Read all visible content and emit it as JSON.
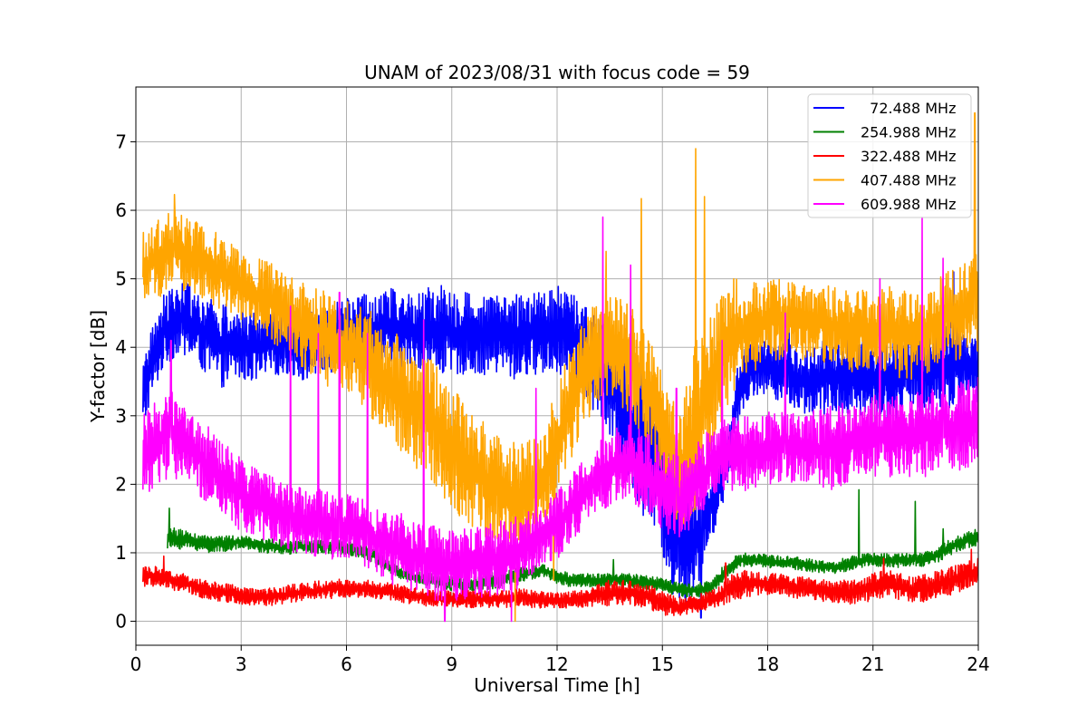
{
  "chart_data": {
    "type": "line",
    "title": "UNAM of 2023/08/31 with focus code = 59",
    "xlabel": "Universal Time [h]",
    "ylabel": "Y-factor [dB]",
    "xlim": [
      0,
      24
    ],
    "ylim": [
      -0.35,
      7.8
    ],
    "xticks": [
      0,
      3,
      6,
      9,
      12,
      15,
      18,
      21,
      24
    ],
    "yticks": [
      0,
      1,
      2,
      3,
      4,
      5,
      6,
      7
    ],
    "grid": true,
    "legend_position": "top-right",
    "series": [
      {
        "name": "72.488 MHz",
        "legend_label": "  72.488 MHz",
        "color": "#0000ff",
        "band_x": [
          0.2,
          0.4,
          0.8,
          1.2,
          1.6,
          2.0,
          2.4,
          2.8,
          3.2,
          3.6,
          4.0,
          4.4,
          4.8,
          5.2,
          5.6,
          6.0,
          6.4,
          6.8,
          7.2,
          7.6,
          8.0,
          8.4,
          8.8,
          9.2,
          9.6,
          10.0,
          10.4,
          10.8,
          11.2,
          11.6,
          12.0,
          12.4,
          12.8,
          13.2,
          13.6,
          14.0,
          14.4,
          14.8,
          15.2,
          15.6,
          16.0,
          16.4,
          16.8,
          17.2,
          17.6,
          18.0,
          18.4,
          18.8,
          19.2,
          19.6,
          20.0,
          20.4,
          20.8,
          21.2,
          21.6,
          22.0,
          22.4,
          22.8,
          23.2,
          23.6,
          24.0
        ],
        "band_lo": [
          2.7,
          3.2,
          3.7,
          3.9,
          3.8,
          3.6,
          3.4,
          3.5,
          3.5,
          3.5,
          3.6,
          3.6,
          3.5,
          3.6,
          3.6,
          3.7,
          3.6,
          3.7,
          3.7,
          3.7,
          3.7,
          3.6,
          3.6,
          3.6,
          3.6,
          3.6,
          3.6,
          3.5,
          3.6,
          3.6,
          3.6,
          3.5,
          3.2,
          3.0,
          2.5,
          2.0,
          1.6,
          1.2,
          0.6,
          0.2,
          0.5,
          1.2,
          1.8,
          3.0,
          3.3,
          3.3,
          3.2,
          3.1,
          3.0,
          3.0,
          3.0,
          3.0,
          3.0,
          3.0,
          2.8,
          3.0,
          3.0,
          3.1,
          3.1,
          3.2,
          3.2
        ],
        "band_hi": [
          3.8,
          4.2,
          4.8,
          5.0,
          4.9,
          4.8,
          4.7,
          4.6,
          4.5,
          4.5,
          4.6,
          4.5,
          4.5,
          4.6,
          4.7,
          4.8,
          4.8,
          4.9,
          4.9,
          4.8,
          4.8,
          4.9,
          4.9,
          4.8,
          4.8,
          4.8,
          4.8,
          4.8,
          4.8,
          4.9,
          4.9,
          4.8,
          4.6,
          4.4,
          4.2,
          4.0,
          3.8,
          3.3,
          2.8,
          2.1,
          1.9,
          2.3,
          2.6,
          3.9,
          4.1,
          4.2,
          4.1,
          4.0,
          4.0,
          4.1,
          4.2,
          4.2,
          4.1,
          4.2,
          4.2,
          4.3,
          4.3,
          4.4,
          4.4,
          4.3,
          4.2
        ],
        "spikes": [
          [
            16.1,
            0.05
          ],
          [
            15.3,
            0.4
          ],
          [
            18.6,
            4.4
          ],
          [
            23.3,
            5.1
          ]
        ]
      },
      {
        "name": "254.988 MHz",
        "legend_label": "254.988 MHz",
        "color": "#008000",
        "band_x": [
          0.9,
          1.2,
          1.6,
          2.0,
          2.4,
          2.8,
          3.2,
          3.6,
          4.0,
          4.4,
          4.8,
          5.2,
          5.6,
          6.0,
          6.4,
          6.8,
          7.2,
          7.6,
          8.0,
          8.4,
          8.8,
          9.2,
          9.6,
          10.0,
          10.4,
          10.8,
          11.2,
          11.6,
          12.0,
          12.4,
          12.8,
          13.2,
          13.6,
          14.0,
          14.4,
          14.8,
          15.2,
          15.6,
          16.0,
          16.4,
          16.8,
          17.2,
          17.6,
          18.0,
          18.4,
          18.8,
          19.2,
          19.6,
          20.0,
          20.4,
          20.8,
          21.2,
          21.6,
          22.0,
          22.4,
          22.8,
          23.2,
          23.6,
          24.0
        ],
        "band_lo": [
          1.05,
          1.05,
          1.05,
          1.0,
          1.0,
          1.05,
          1.05,
          1.0,
          0.98,
          0.98,
          1.0,
          0.98,
          0.98,
          0.98,
          0.92,
          0.85,
          0.7,
          0.6,
          0.55,
          0.5,
          0.45,
          0.45,
          0.45,
          0.45,
          0.5,
          0.55,
          0.6,
          0.65,
          0.55,
          0.5,
          0.5,
          0.5,
          0.5,
          0.5,
          0.45,
          0.45,
          0.4,
          0.35,
          0.35,
          0.4,
          0.6,
          0.8,
          0.8,
          0.78,
          0.78,
          0.75,
          0.72,
          0.7,
          0.7,
          0.75,
          0.8,
          0.8,
          0.78,
          0.8,
          0.8,
          0.85,
          0.95,
          1.05,
          1.1
        ],
        "band_hi": [
          1.4,
          1.35,
          1.3,
          1.25,
          1.25,
          1.25,
          1.25,
          1.2,
          1.2,
          1.18,
          1.2,
          1.2,
          1.2,
          1.2,
          1.15,
          1.05,
          0.9,
          0.8,
          0.75,
          0.7,
          0.68,
          0.65,
          0.65,
          0.7,
          0.75,
          0.8,
          0.8,
          0.85,
          0.75,
          0.7,
          0.7,
          0.7,
          0.7,
          0.7,
          0.68,
          0.65,
          0.6,
          0.55,
          0.55,
          0.6,
          0.85,
          1.0,
          1.0,
          0.98,
          0.95,
          0.95,
          0.92,
          0.88,
          0.9,
          0.95,
          1.0,
          1.0,
          0.98,
          1.0,
          1.0,
          1.05,
          1.2,
          1.3,
          1.35
        ],
        "spikes": [
          [
            0.95,
            1.65
          ],
          [
            6.1,
            1.45
          ],
          [
            13.6,
            0.9
          ],
          [
            20.6,
            1.92
          ],
          [
            22.2,
            1.75
          ],
          [
            23.0,
            1.35
          ]
        ]
      },
      {
        "name": "322.488 MHz",
        "legend_label": "322.488 MHz",
        "color": "#ff0000",
        "band_x": [
          0.2,
          0.6,
          1.0,
          1.4,
          1.8,
          2.2,
          2.6,
          3.0,
          3.4,
          3.8,
          4.2,
          4.6,
          5.0,
          5.4,
          5.8,
          6.2,
          6.6,
          7.0,
          7.4,
          7.8,
          8.2,
          8.6,
          9.0,
          9.4,
          9.8,
          10.2,
          10.6,
          11.0,
          11.4,
          11.8,
          12.2,
          12.6,
          13.0,
          13.4,
          13.8,
          14.2,
          14.6,
          15.0,
          15.4,
          15.8,
          16.2,
          16.6,
          17.0,
          17.4,
          17.8,
          18.2,
          18.6,
          19.0,
          19.4,
          19.8,
          20.2,
          20.6,
          21.0,
          21.4,
          21.8,
          22.2,
          22.6,
          23.0,
          23.4,
          23.8,
          24.0
        ],
        "band_lo": [
          0.5,
          0.5,
          0.45,
          0.42,
          0.35,
          0.3,
          0.28,
          0.25,
          0.22,
          0.22,
          0.25,
          0.28,
          0.3,
          0.32,
          0.35,
          0.35,
          0.35,
          0.32,
          0.3,
          0.25,
          0.22,
          0.2,
          0.2,
          0.2,
          0.2,
          0.2,
          0.2,
          0.22,
          0.18,
          0.18,
          0.18,
          0.2,
          0.22,
          0.22,
          0.22,
          0.22,
          0.18,
          0.1,
          0.05,
          0.12,
          0.15,
          0.2,
          0.3,
          0.35,
          0.38,
          0.38,
          0.35,
          0.32,
          0.3,
          0.28,
          0.25,
          0.25,
          0.3,
          0.35,
          0.3,
          0.25,
          0.3,
          0.35,
          0.4,
          0.5,
          0.55
        ],
        "band_hi": [
          0.85,
          0.8,
          0.75,
          0.7,
          0.62,
          0.58,
          0.55,
          0.52,
          0.5,
          0.5,
          0.52,
          0.55,
          0.58,
          0.6,
          0.62,
          0.6,
          0.6,
          0.58,
          0.55,
          0.5,
          0.48,
          0.45,
          0.45,
          0.45,
          0.45,
          0.45,
          0.45,
          0.48,
          0.45,
          0.42,
          0.42,
          0.45,
          0.5,
          0.6,
          0.6,
          0.58,
          0.55,
          0.45,
          0.35,
          0.38,
          0.42,
          0.5,
          0.7,
          0.75,
          0.72,
          0.7,
          0.68,
          0.65,
          0.62,
          0.6,
          0.6,
          0.62,
          0.7,
          0.75,
          0.7,
          0.65,
          0.7,
          0.78,
          0.85,
          0.9,
          0.95
        ],
        "spikes": [
          [
            0.8,
            0.95
          ],
          [
            16.8,
            0.85
          ],
          [
            21.3,
            0.92
          ],
          [
            23.8,
            1.05
          ]
        ]
      },
      {
        "name": "407.488 MHz",
        "legend_label": "407.488 MHz",
        "color": "#ffa500",
        "band_x": [
          0.2,
          0.5,
          1.0,
          1.5,
          2.0,
          2.5,
          3.0,
          3.5,
          4.0,
          4.5,
          5.0,
          5.5,
          6.0,
          6.5,
          7.0,
          7.5,
          8.0,
          8.5,
          9.0,
          9.5,
          10.0,
          10.5,
          11.0,
          11.5,
          12.0,
          12.5,
          13.0,
          13.5,
          14.0,
          14.5,
          15.0,
          15.5,
          16.0,
          16.5,
          17.0,
          17.5,
          18.0,
          18.5,
          19.0,
          19.5,
          20.0,
          20.5,
          21.0,
          21.5,
          22.0,
          22.5,
          23.0,
          23.5,
          24.0
        ],
        "band_lo": [
          4.6,
          4.7,
          4.8,
          4.8,
          4.7,
          4.5,
          4.4,
          4.2,
          4.0,
          3.8,
          3.6,
          3.4,
          3.3,
          3.1,
          2.8,
          2.5,
          2.2,
          2.0,
          1.6,
          1.4,
          1.2,
          1.1,
          1.0,
          1.2,
          1.8,
          2.5,
          3.0,
          3.2,
          3.0,
          2.6,
          2.0,
          1.3,
          1.5,
          2.6,
          3.3,
          3.6,
          3.8,
          3.8,
          3.8,
          3.8,
          3.7,
          3.6,
          3.7,
          3.6,
          3.5,
          3.6,
          3.8,
          3.8,
          3.9
        ],
        "band_hi": [
          5.7,
          5.8,
          6.0,
          5.9,
          5.8,
          5.6,
          5.4,
          5.3,
          5.2,
          5.0,
          4.9,
          4.8,
          4.7,
          4.6,
          4.4,
          4.2,
          4.0,
          3.8,
          3.5,
          3.2,
          2.9,
          2.7,
          2.6,
          2.8,
          3.4,
          4.2,
          4.6,
          4.8,
          4.7,
          4.3,
          3.6,
          3.0,
          4.2,
          4.6,
          5.0,
          5.0,
          5.0,
          5.0,
          4.9,
          4.9,
          4.9,
          4.8,
          4.9,
          4.9,
          4.8,
          4.9,
          5.1,
          5.2,
          5.4
        ],
        "spikes": [
          [
            1.1,
            6.23
          ],
          [
            13.4,
            5.4
          ],
          [
            14.4,
            6.17
          ],
          [
            15.95,
            6.9
          ],
          [
            16.2,
            6.2
          ],
          [
            23.9,
            7.42
          ],
          [
            10.8,
            0.0
          ],
          [
            11.9,
            0.6
          ]
        ]
      },
      {
        "name": "609.988 MHz",
        "legend_label": "609.988 MHz",
        "color": "#ff00ff",
        "band_x": [
          0.2,
          0.5,
          1.0,
          1.5,
          2.0,
          2.5,
          3.0,
          3.5,
          4.0,
          4.5,
          5.0,
          5.5,
          6.0,
          6.5,
          7.0,
          7.5,
          8.0,
          8.5,
          9.0,
          9.5,
          10.0,
          10.5,
          11.0,
          11.5,
          12.0,
          12.5,
          13.0,
          13.5,
          14.0,
          14.5,
          15.0,
          15.5,
          16.0,
          16.5,
          17.0,
          17.5,
          18.0,
          18.5,
          19.0,
          19.5,
          20.0,
          20.5,
          21.0,
          21.5,
          22.0,
          22.5,
          23.0,
          23.5,
          24.0
        ],
        "band_lo": [
          1.8,
          1.9,
          2.1,
          2.0,
          1.7,
          1.5,
          1.3,
          1.2,
          1.1,
          1.0,
          0.95,
          0.9,
          0.9,
          0.8,
          0.6,
          0.5,
          0.4,
          0.3,
          0.3,
          0.3,
          0.35,
          0.4,
          0.5,
          0.7,
          0.9,
          1.2,
          1.5,
          1.7,
          1.8,
          1.6,
          1.3,
          1.1,
          1.5,
          1.8,
          1.9,
          1.9,
          2.0,
          2.0,
          2.0,
          1.9,
          1.9,
          2.0,
          2.1,
          2.1,
          2.1,
          2.1,
          2.2,
          2.2,
          2.3
        ],
        "band_hi": [
          3.0,
          3.2,
          3.5,
          3.2,
          2.9,
          2.6,
          2.4,
          2.2,
          2.1,
          2.0,
          1.95,
          1.9,
          1.85,
          1.8,
          1.7,
          1.6,
          1.5,
          1.4,
          1.35,
          1.35,
          1.4,
          1.5,
          1.6,
          1.7,
          1.9,
          2.2,
          2.5,
          2.8,
          2.9,
          2.8,
          2.5,
          2.4,
          2.6,
          2.9,
          3.0,
          3.0,
          3.1,
          3.1,
          3.1,
          3.1,
          3.2,
          3.2,
          3.3,
          3.3,
          3.3,
          3.4,
          3.4,
          3.5,
          3.6
        ],
        "spikes": [
          [
            1.0,
            4.1
          ],
          [
            4.4,
            4.6
          ],
          [
            5.2,
            4.2
          ],
          [
            5.8,
            4.8
          ],
          [
            6.6,
            4.2
          ],
          [
            8.2,
            4.4
          ],
          [
            11.4,
            3.4
          ],
          [
            13.3,
            5.9
          ],
          [
            14.1,
            5.2
          ],
          [
            15.4,
            3.4
          ],
          [
            16.7,
            4.1
          ],
          [
            18.5,
            4.5
          ],
          [
            21.2,
            5.0
          ],
          [
            22.4,
            5.9
          ],
          [
            23.0,
            5.3
          ],
          [
            8.8,
            0.0
          ],
          [
            10.7,
            0.0
          ]
        ]
      }
    ]
  }
}
